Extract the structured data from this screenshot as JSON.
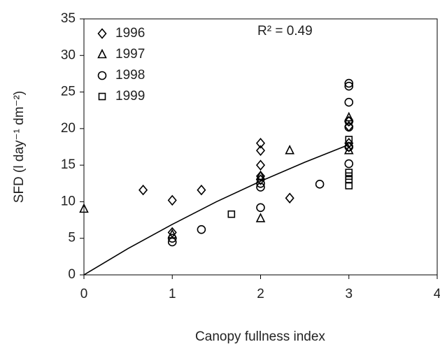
{
  "chart_data": {
    "type": "scatter",
    "xlabel": "Canopy fullness index",
    "ylabel": "SFD (l day⁻¹ dm⁻²)",
    "annotation": "R² = 0.49",
    "xlim": [
      0,
      4
    ],
    "xticks": [
      0,
      1,
      2,
      3,
      4
    ],
    "ylim": [
      0,
      35
    ],
    "yticks": [
      0,
      5,
      10,
      15,
      20,
      25,
      30,
      35
    ],
    "grid": false,
    "legend": "upper left",
    "color": "#000000",
    "series": [
      {
        "name": "1996",
        "marker": "diamond",
        "x": [
          0.67,
          1,
          1.33,
          1,
          2,
          2,
          2,
          2,
          2,
          2.33,
          3,
          3,
          3,
          3
        ],
        "values": [
          11.6,
          10.2,
          11.6,
          5.8,
          18,
          17,
          15,
          13.5,
          13,
          10.5,
          21,
          20.3,
          18,
          17.5
        ]
      },
      {
        "name": "1997",
        "marker": "triangle",
        "x": [
          0,
          1,
          2,
          2,
          2.33,
          3,
          3
        ],
        "values": [
          9,
          5.5,
          7.7,
          13.5,
          17,
          21.5,
          17
        ]
      },
      {
        "name": "1998",
        "marker": "circle",
        "x": [
          1,
          1,
          1.33,
          2,
          2,
          2,
          2.67,
          3,
          3,
          3,
          3,
          3,
          3,
          3
        ],
        "values": [
          4.5,
          5,
          6.2,
          9.2,
          12,
          12.5,
          12.4,
          26.2,
          25.8,
          23.6,
          21,
          20.2,
          17.5,
          15.2
        ]
      },
      {
        "name": "1999",
        "marker": "square",
        "x": [
          1.67,
          3,
          3,
          3,
          3,
          3
        ],
        "values": [
          8.3,
          18.5,
          14,
          13.5,
          13,
          12.2
        ]
      }
    ],
    "trend_line": {
      "x": [
        0,
        0.5,
        1,
        1.5,
        2,
        2.5,
        3
      ],
      "values": [
        0,
        3.6,
        6.9,
        10,
        12.8,
        15.4,
        17.8
      ]
    }
  }
}
